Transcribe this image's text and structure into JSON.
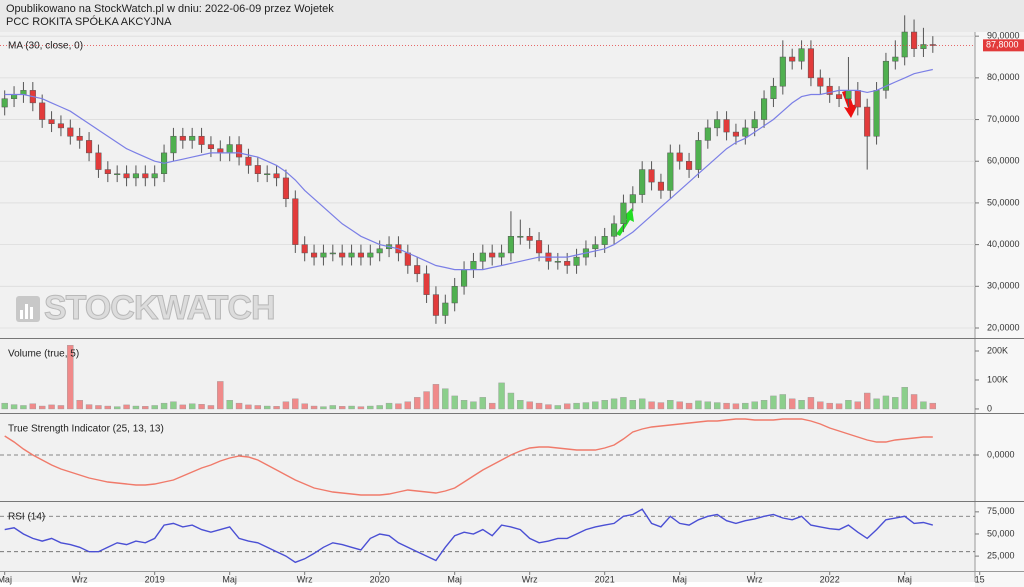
{
  "header": {
    "published": "Opublikowano na StockWatch.pl w dniu: 2022-06-09 przez Wojetek",
    "instrument": "PCC ROKITA SPÓŁKA AKCYJNA"
  },
  "watermark": "STOCKWATCH",
  "chart_data": [
    {
      "type": "candlestick",
      "title": "MA (30, close, 0)",
      "categories": [
        null,
        null,
        null,
        null,
        null,
        null,
        null,
        null,
        null,
        null,
        null,
        null,
        null,
        null,
        null,
        null,
        null,
        null,
        null,
        null,
        null,
        null,
        null,
        null,
        null,
        null,
        null,
        null,
        null,
        null,
        null,
        null,
        null,
        null,
        null,
        null,
        null,
        null,
        null,
        null,
        null,
        null,
        null,
        null,
        null,
        null,
        null,
        null,
        null,
        null,
        null,
        null,
        null,
        null,
        null,
        null,
        null,
        null,
        null,
        null,
        null,
        null,
        null,
        null,
        null,
        null,
        null,
        null,
        null,
        null,
        null,
        null,
        null,
        null,
        null,
        null,
        null,
        null,
        null,
        null,
        null,
        null,
        null,
        null,
        null,
        null,
        null,
        null,
        null,
        null,
        null,
        null,
        null,
        null,
        null,
        null,
        null,
        null,
        null,
        null
      ],
      "xlim": [
        -0.5,
        103.5
      ],
      "open": [
        73000,
        75000,
        76000,
        77000,
        74000,
        70000,
        69000,
        68000,
        66000,
        65000,
        62000,
        58000,
        57000,
        57000,
        56000,
        57000,
        56000,
        57000,
        62000,
        66000,
        65000,
        66000,
        64000,
        63000,
        62000,
        64000,
        61000,
        59000,
        57000,
        57000,
        56000,
        51000,
        40000,
        38000,
        37000,
        38000,
        38000,
        37000,
        38000,
        37000,
        38000,
        39000,
        40000,
        38000,
        35000,
        33000,
        28000,
        23000,
        26000,
        30000,
        34000,
        36000,
        38000,
        37000,
        38000,
        42000,
        42000,
        41000,
        38000,
        36000,
        36000,
        35000,
        37000,
        39000,
        40000,
        42000,
        45000,
        50000,
        52000,
        58000,
        55000,
        53000,
        62000,
        60000,
        58000,
        65000,
        68000,
        70000,
        67000,
        66000,
        68000,
        70000,
        75000,
        78000,
        85000,
        84000,
        87000,
        80000,
        78000,
        76000,
        75000,
        77000,
        73000,
        66000,
        77000,
        84000,
        85000,
        91000,
        87000,
        88000
      ],
      "high": [
        77000,
        78000,
        79000,
        79000,
        76000,
        72000,
        71000,
        70000,
        68000,
        67000,
        64000,
        60000,
        59000,
        59000,
        59000,
        59000,
        59000,
        64000,
        68000,
        68000,
        68000,
        68000,
        66000,
        65000,
        66000,
        66000,
        63000,
        61000,
        59000,
        59000,
        58000,
        53000,
        42000,
        40000,
        40000,
        40000,
        40000,
        40000,
        40000,
        40000,
        41000,
        42000,
        42000,
        40000,
        37000,
        35000,
        30000,
        28000,
        32000,
        36000,
        38000,
        40000,
        40000,
        40000,
        48000,
        46000,
        44000,
        43000,
        40000,
        38000,
        38000,
        39000,
        41000,
        42000,
        44000,
        47000,
        52000,
        54000,
        60000,
        60000,
        57000,
        64000,
        64000,
        62000,
        67000,
        70000,
        72000,
        72000,
        69000,
        70000,
        72000,
        77000,
        80000,
        89000,
        87000,
        89000,
        89000,
        82000,
        80000,
        78000,
        85000,
        79000,
        75000,
        79000,
        86000,
        89000,
        95000,
        94000,
        92000,
        90000
      ],
      "low": [
        71000,
        73000,
        74000,
        72000,
        68000,
        67000,
        66000,
        64000,
        63000,
        60000,
        56000,
        55000,
        55000,
        54000,
        54000,
        54000,
        54000,
        55000,
        60000,
        63000,
        63000,
        62000,
        61000,
        60000,
        60000,
        59000,
        57000,
        55000,
        55000,
        54000,
        49000,
        38000,
        36000,
        35000,
        35000,
        36000,
        35000,
        35000,
        35000,
        35000,
        36000,
        37000,
        36000,
        33000,
        31000,
        26000,
        21000,
        21000,
        24000,
        28000,
        32000,
        34000,
        35000,
        35000,
        36000,
        40000,
        39000,
        36000,
        34000,
        34000,
        33000,
        33000,
        35000,
        37000,
        38000,
        40000,
        43000,
        48000,
        50000,
        53000,
        51000,
        51000,
        58000,
        56000,
        56000,
        63000,
        66000,
        65000,
        64000,
        64000,
        66000,
        68000,
        73000,
        76000,
        82000,
        82000,
        78000,
        76000,
        74000,
        73000,
        73000,
        71000,
        58000,
        64000,
        75000,
        82000,
        83000,
        85000,
        85000,
        86000
      ],
      "close": [
        75000,
        76000,
        77000,
        74000,
        70000,
        69000,
        68000,
        66000,
        65000,
        62000,
        58000,
        57000,
        57000,
        56000,
        57000,
        56000,
        57000,
        62000,
        66000,
        65000,
        66000,
        64000,
        63000,
        62000,
        64000,
        61000,
        59000,
        57000,
        57000,
        56000,
        51000,
        40000,
        38000,
        37000,
        38000,
        38000,
        37000,
        38000,
        37000,
        38000,
        39000,
        40000,
        38000,
        35000,
        33000,
        28000,
        23000,
        26000,
        30000,
        34000,
        36000,
        38000,
        37000,
        38000,
        42000,
        42000,
        41000,
        38000,
        36000,
        36000,
        35000,
        37000,
        39000,
        40000,
        42000,
        45000,
        50000,
        52000,
        58000,
        55000,
        53000,
        62000,
        60000,
        58000,
        65000,
        68000,
        70000,
        67000,
        66000,
        68000,
        70000,
        75000,
        78000,
        85000,
        84000,
        87000,
        80000,
        78000,
        76000,
        75000,
        77000,
        73000,
        66000,
        77000,
        84000,
        85000,
        91000,
        87000,
        88000,
        87800
      ],
      "up_color": "#4fb04f",
      "down_color": "#e23b3b",
      "ma": {
        "color": "#7b7fe6",
        "values": [
          76000,
          76000,
          76000,
          75500,
          75000,
          74000,
          73000,
          72000,
          70500,
          69000,
          67500,
          66000,
          64500,
          63000,
          62000,
          61000,
          60000,
          59500,
          60000,
          60500,
          61000,
          61500,
          62000,
          62000,
          62000,
          62000,
          61500,
          61000,
          60000,
          59000,
          57500,
          55500,
          53000,
          51000,
          49000,
          47000,
          45000,
          43500,
          42000,
          41000,
          40000,
          39500,
          39000,
          38000,
          37000,
          36000,
          35000,
          34500,
          34000,
          34000,
          34000,
          34000,
          34500,
          35000,
          35500,
          36000,
          36500,
          37000,
          37000,
          37000,
          37000,
          37500,
          38000,
          38500,
          39000,
          40000,
          41500,
          43000,
          45000,
          47000,
          49000,
          51000,
          53000,
          55000,
          57000,
          59000,
          61000,
          63000,
          64500,
          65500,
          67000,
          68500,
          70000,
          72000,
          74000,
          75500,
          76000,
          76000,
          76500,
          77000,
          77000,
          77000,
          76500,
          77000,
          78000,
          79000,
          80000,
          81000,
          81500,
          82000
        ]
      },
      "last_price": {
        "value": 87800,
        "label": "87,8000",
        "color": "#e23b3b"
      },
      "ylim": [
        17600,
        91000
      ],
      "yticks": [
        {
          "value": 20000,
          "label": "20,0000"
        },
        {
          "value": 30000,
          "label": "30,0000"
        },
        {
          "value": 40000,
          "label": "40,0000"
        },
        {
          "value": 50000,
          "label": "50,0000"
        },
        {
          "value": 60000,
          "label": "60,0000"
        },
        {
          "value": 70000,
          "label": "70,0000"
        },
        {
          "value": 80000,
          "label": "80,0000"
        },
        {
          "value": 90000,
          "label": "90,0000"
        }
      ],
      "grid": true
    },
    {
      "type": "bar",
      "title": "Volume (true, 5)",
      "values": [
        20000,
        15000,
        12000,
        18000,
        10000,
        14000,
        12000,
        220000,
        30000,
        15000,
        12000,
        10000,
        8000,
        14000,
        10000,
        9000,
        12000,
        20000,
        25000,
        14000,
        18000,
        16000,
        12000,
        95000,
        30000,
        20000,
        14000,
        12000,
        10000,
        9000,
        25000,
        35000,
        18000,
        10000,
        8000,
        12000,
        9000,
        10000,
        8000,
        10000,
        12000,
        20000,
        18000,
        25000,
        40000,
        60000,
        85000,
        70000,
        45000,
        30000,
        25000,
        40000,
        20000,
        90000,
        55000,
        30000,
        25000,
        20000,
        15000,
        12000,
        18000,
        20000,
        22000,
        25000,
        30000,
        35000,
        40000,
        30000,
        35000,
        25000,
        22000,
        30000,
        25000,
        20000,
        28000,
        25000,
        22000,
        20000,
        18000,
        20000,
        25000,
        30000,
        45000,
        50000,
        35000,
        30000,
        40000,
        25000,
        20000,
        18000,
        30000,
        25000,
        55000,
        35000,
        45000,
        40000,
        75000,
        50000,
        25000,
        20000
      ],
      "up_color": "#8ccf8c",
      "down_color": "#f08a8a",
      "ylim": [
        -14000,
        238000
      ],
      "yticks": [
        0,
        {
          "value": 100000,
          "label": "100K"
        },
        {
          "value": 200000,
          "label": "200K"
        }
      ],
      "grid": false
    },
    {
      "type": "line",
      "title": "True Strength Indicator (25, 13, 13)",
      "color": "#f07a6a",
      "values": [
        19,
        13,
        6,
        0,
        -5,
        -10,
        -14,
        -17,
        -20,
        -23,
        -25,
        -27,
        -28,
        -29,
        -30,
        -30,
        -29,
        -27,
        -25,
        -21,
        -17,
        -13,
        -10,
        -6,
        -3,
        -1,
        -2,
        -5,
        -10,
        -15,
        -20,
        -25,
        -29,
        -33,
        -35,
        -37,
        -38,
        -39,
        -40,
        -40,
        -40,
        -39,
        -37,
        -35,
        -36,
        -37,
        -38,
        -36,
        -33,
        -27,
        -21,
        -15,
        -10,
        -5,
        0,
        4,
        7,
        8,
        8,
        7,
        6,
        5,
        5,
        5,
        7,
        10,
        16,
        23,
        26,
        28,
        29,
        30,
        31,
        32,
        33,
        34,
        34,
        35,
        36,
        36,
        35,
        35,
        35,
        36,
        36,
        36,
        34,
        31,
        27,
        24,
        21,
        18,
        15,
        13,
        13,
        15,
        16,
        17,
        18,
        18
      ],
      "ylim": [
        -45,
        40
      ],
      "yticks": [
        {
          "value": 0,
          "label": "0,0000"
        }
      ],
      "grid": "dashed"
    },
    {
      "type": "line",
      "title": "RSI (14)",
      "color": "#4a4fd4",
      "values": [
        55,
        57,
        50,
        45,
        42,
        45,
        40,
        38,
        35,
        30,
        30,
        35,
        40,
        38,
        42,
        40,
        45,
        60,
        62,
        58,
        60,
        55,
        52,
        55,
        58,
        45,
        42,
        40,
        35,
        30,
        25,
        18,
        22,
        28,
        35,
        40,
        38,
        35,
        32,
        45,
        50,
        48,
        40,
        35,
        30,
        25,
        20,
        35,
        48,
        52,
        50,
        55,
        48,
        60,
        58,
        55,
        45,
        40,
        42,
        45,
        45,
        50,
        55,
        58,
        60,
        62,
        70,
        72,
        78,
        62,
        58,
        70,
        62,
        60,
        66,
        70,
        72,
        65,
        62,
        65,
        67,
        70,
        72,
        68,
        66,
        70,
        60,
        58,
        56,
        55,
        60,
        52,
        45,
        55,
        66,
        68,
        70,
        62,
        63,
        60
      ],
      "levels": [
        70,
        30
      ],
      "ylim": [
        -2,
        85
      ],
      "yticks": [
        {
          "value": 25,
          "label": "25,000"
        },
        {
          "value": 50,
          "label": "50,000"
        },
        {
          "value": 75,
          "label": "75,000"
        }
      ],
      "grid": false,
      "xticks": [
        {
          "value": 0,
          "label": "Maj"
        },
        {
          "value": 8,
          "label": "Wrz"
        },
        {
          "value": 16,
          "label": "2019"
        },
        {
          "value": 24,
          "label": "Maj"
        },
        {
          "value": 32,
          "label": "Wrz"
        },
        {
          "value": 40,
          "label": "2020"
        },
        {
          "value": 48,
          "label": "Maj"
        },
        {
          "value": 56,
          "label": "Wrz"
        },
        {
          "value": 64,
          "label": "2021"
        },
        {
          "value": 72,
          "label": "Maj"
        },
        {
          "value": 80,
          "label": "Wrz"
        },
        {
          "value": 88,
          "label": "2022"
        },
        {
          "value": 96,
          "label": "Maj"
        },
        {
          "value": 104,
          "label": "15"
        }
      ]
    }
  ]
}
